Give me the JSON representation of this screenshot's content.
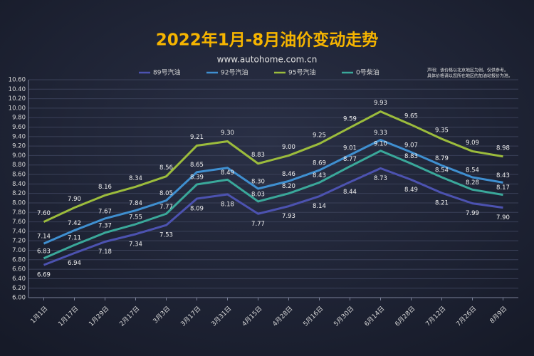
{
  "chart_data": {
    "type": "line",
    "title": "2022年1月-8月油价变动走势",
    "subtitle": "www.autohome.com.cn",
    "note": [
      "声明：该价格以北京地区为例，仅供参考。",
      "具体价格请以您所在地区的加油站报价为准。"
    ],
    "categories": [
      "1月1日",
      "1月17日",
      "1月29日",
      "2月17日",
      "3月3日",
      "3月17日",
      "3月31日",
      "4月15日",
      "4月28日",
      "5月16日",
      "5月30日",
      "6月14日",
      "6月28日",
      "7月12日",
      "7月26日",
      "8月9日"
    ],
    "series": [
      {
        "name": "89号汽油",
        "color": "#4c52b0",
        "values": [
          6.69,
          6.94,
          7.18,
          7.34,
          7.53,
          8.09,
          8.18,
          7.77,
          7.93,
          8.14,
          8.44,
          8.73,
          8.49,
          8.21,
          7.99,
          7.9
        ],
        "value_labels": [
          "6.69",
          "6.94",
          "7.18",
          "7.34",
          "7.53",
          "8.09",
          "8.18",
          "7.77",
          "7.93",
          "8.14",
          "8.44",
          "8.73",
          "8.49",
          "8.21",
          "7.99",
          "7.90"
        ]
      },
      {
        "name": "92号汽油",
        "color": "#3f8fd0",
        "values": [
          7.14,
          7.42,
          7.67,
          7.84,
          8.05,
          8.65,
          8.74,
          8.3,
          8.46,
          8.69,
          9.01,
          9.33,
          9.07,
          8.79,
          8.54,
          8.43
        ],
        "value_labels": [
          "7.14",
          "7.42",
          "7.67",
          "7.84",
          "8.05",
          "8.65",
          null,
          "8.30",
          "8.46",
          "8.69",
          "9.01",
          "9.33",
          "9.07",
          "8.79",
          "8.54",
          "8.43"
        ]
      },
      {
        "name": "95号汽油",
        "color": "#9cbc3c",
        "values": [
          7.6,
          7.9,
          8.16,
          8.34,
          8.56,
          9.21,
          9.3,
          8.83,
          9.0,
          9.25,
          9.59,
          9.93,
          9.65,
          9.35,
          9.09,
          8.98
        ],
        "value_labels": [
          "7.60",
          "7.90",
          "8.16",
          "8.34",
          "8.56",
          "9.21",
          "9.30",
          "8.83",
          "9.00",
          "9.25",
          "9.59",
          "9.93",
          "9.65",
          "9.35",
          "9.09",
          "8.98"
        ]
      },
      {
        "name": "0号柴油",
        "color": "#3aa89a",
        "values": [
          6.83,
          7.11,
          7.37,
          7.55,
          7.77,
          8.39,
          8.49,
          8.03,
          8.2,
          8.43,
          8.77,
          9.1,
          8.83,
          8.54,
          8.28,
          8.17
        ],
        "value_labels": [
          "6.83",
          "7.11",
          "7.37",
          "7.55",
          "7.77",
          "8.39",
          "8.49",
          "8.03",
          "8.20",
          "8.43",
          "8.77",
          "9.10",
          "8.83",
          "8.54",
          "8.28",
          "8.17"
        ]
      }
    ],
    "ylim": [
      6.0,
      10.6
    ],
    "yticks": [
      {
        "value": 6.0,
        "label": "6.00"
      },
      {
        "value": 6.2,
        "label": "6.20"
      },
      {
        "value": 6.4,
        "label": "6.40"
      },
      {
        "value": 6.6,
        "label": "6.60"
      },
      {
        "value": 6.8,
        "label": "6.80"
      },
      {
        "value": 7.0,
        "label": "7.00"
      },
      {
        "value": 7.2,
        "label": "7.20"
      },
      {
        "value": 7.4,
        "label": "7.40"
      },
      {
        "value": 7.6,
        "label": "7.60"
      },
      {
        "value": 7.8,
        "label": "7.80"
      },
      {
        "value": 8.0,
        "label": "8.00"
      },
      {
        "value": 8.2,
        "label": "8.20"
      },
      {
        "value": 8.4,
        "label": "8.40"
      },
      {
        "value": 8.6,
        "label": "8.60"
      },
      {
        "value": 8.8,
        "label": "8.80"
      },
      {
        "value": 9.0,
        "label": "9.00"
      },
      {
        "value": 9.2,
        "label": "9.20"
      },
      {
        "value": 9.4,
        "label": "9.40"
      },
      {
        "value": 9.6,
        "label": "9.60"
      },
      {
        "value": 9.8,
        "label": "9.80"
      },
      {
        "value": 10.0,
        "label": "10.00"
      },
      {
        "value": 10.2,
        "label": "10.20"
      },
      {
        "value": 10.4,
        "label": "10.40"
      },
      {
        "value": 10.6,
        "label": "10.60"
      }
    ],
    "grid": true
  }
}
